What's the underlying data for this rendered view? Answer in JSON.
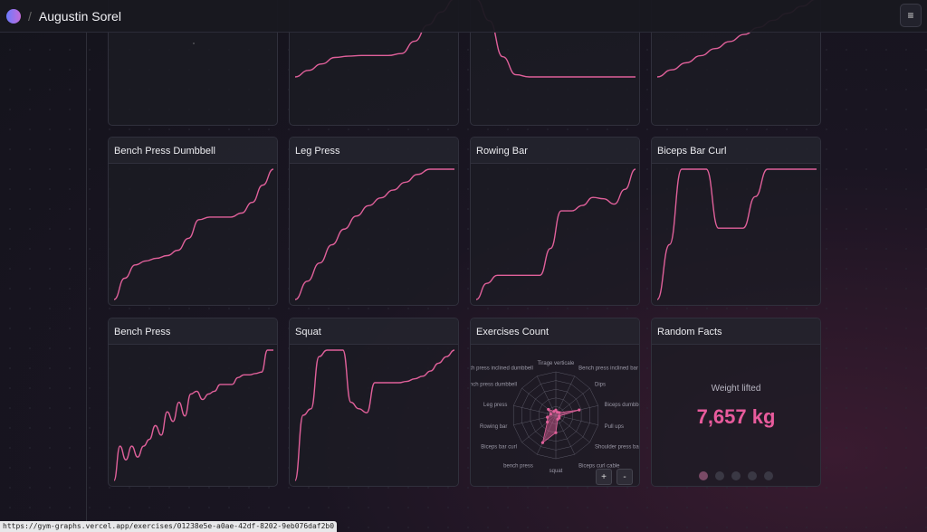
{
  "header": {
    "title": "Augustin Sorel",
    "menu_icon": "hamburger-icon"
  },
  "colors": {
    "line": "#e0609a",
    "accent": "#e85b9c"
  },
  "top_cards": [
    {
      "values": [
        [
          0.5,
          0.4
        ]
      ],
      "dot": true
    },
    {
      "values": [
        0,
        10,
        20,
        30,
        32,
        33,
        33,
        33,
        36,
        55,
        80,
        100,
        120
      ]
    },
    {
      "values": [
        120,
        90,
        40,
        15,
        12,
        12,
        12,
        12,
        12,
        12,
        12,
        12,
        12
      ]
    },
    {
      "values": [
        0,
        10,
        20,
        30,
        40,
        50,
        60,
        70,
        80,
        90,
        100,
        110
      ]
    }
  ],
  "cards": [
    {
      "title": "Bench Press Dumbbell",
      "values": [
        2,
        18,
        28,
        31,
        33,
        35,
        39,
        48,
        62,
        64,
        64,
        64,
        67,
        75,
        88,
        100
      ]
    },
    {
      "title": "Leg Press",
      "values": [
        0,
        14,
        28,
        42,
        54,
        64,
        72,
        78,
        84,
        90,
        96,
        100,
        100,
        100
      ]
    },
    {
      "title": "Rowing Bar",
      "values": [
        0,
        12,
        18,
        18,
        18,
        18,
        18,
        38,
        66,
        66,
        70,
        76,
        75,
        71,
        82,
        97
      ]
    },
    {
      "title": "Biceps Bar Curl",
      "values": [
        0,
        40,
        95,
        95,
        95,
        52,
        52,
        52,
        75,
        95,
        95,
        95,
        95,
        95
      ]
    }
  ],
  "cards2": [
    {
      "title": "Bench Press",
      "values": [
        5,
        30,
        20,
        30,
        22,
        30,
        35,
        45,
        38,
        55,
        48,
        62,
        52,
        68,
        70,
        64,
        68,
        70,
        75,
        75,
        75,
        80,
        82,
        82,
        83,
        84,
        100,
        100
      ]
    },
    {
      "title": "Squat",
      "values": [
        0,
        50,
        55,
        95,
        100,
        100,
        100,
        60,
        55,
        52,
        75,
        75,
        75,
        75,
        76,
        78,
        80,
        84,
        90,
        95,
        100
      ]
    }
  ],
  "exercises_count": {
    "title": "Exercises Count",
    "labels": [
      "Tirage verticale",
      "Bench press inclined bar",
      "Dips",
      "Biceps dumbbell",
      "Pull ups",
      "Shoulder press bar",
      "Biceps curl cable",
      "squat",
      "bench press",
      "Biceps bar curl",
      "Rowing bar",
      "Leg press",
      "Bench press dumbbell",
      "Bench press inclined dumbbell"
    ],
    "values": [
      0.12,
      0.08,
      0.1,
      0.55,
      0.08,
      0.1,
      0.1,
      0.4,
      0.7,
      0.25,
      0.2,
      0.12,
      0.22,
      0.1
    ],
    "max": 1,
    "zoom_in": "+",
    "zoom_out": "-"
  },
  "random_facts": {
    "title": "Random Facts",
    "label": "Weight lifted",
    "value": "7,657 kg",
    "pages": 5,
    "active_page": 0
  },
  "status_url": "https://gym-graphs.vercel.app/exercises/01238e5e-a0ae-42df-8202-9eb076daf2b0"
}
